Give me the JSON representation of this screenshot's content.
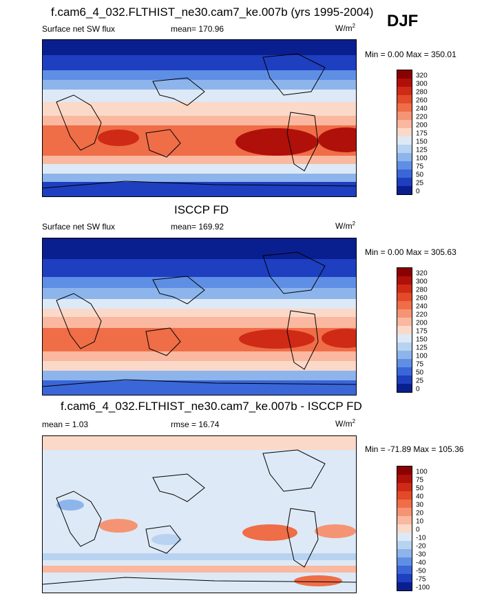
{
  "season": "DJF",
  "chart_data": [
    {
      "type": "heatmap",
      "title": "f.cam6_4_032.FLTHIST_ne30.cam7_ke.007b (yrs 1995-2004)",
      "left_label": "Surface net SW flux",
      "center_label": "mean= 170.96",
      "units": "W/m",
      "units_sup": "2",
      "minmax": "Min =   0.00 Max = 350.01",
      "levels": [
        "320",
        "300",
        "280",
        "260",
        "240",
        "220",
        "200",
        "175",
        "150",
        "125",
        "100",
        "75",
        "50",
        "25",
        "0"
      ],
      "colors": [
        "#8b0000",
        "#b0100a",
        "#cf2a16",
        "#e24a2a",
        "#ef6d47",
        "#f59474",
        "#f9b89f",
        "#fbd9c9",
        "#dde9f6",
        "#b8d3f1",
        "#8db5ec",
        "#5f8fe4",
        "#3a66d8",
        "#1e3fbf",
        "#0a1f8f"
      ],
      "mean": 170.96,
      "min": 0.0,
      "max": 350.01
    },
    {
      "type": "heatmap",
      "title": "ISCCP FD",
      "left_label": "Surface net SW flux",
      "center_label": "mean= 169.92",
      "units": "W/m",
      "units_sup": "2",
      "minmax": "Min =   0.00 Max = 305.63",
      "levels": [
        "320",
        "300",
        "280",
        "260",
        "240",
        "220",
        "200",
        "175",
        "150",
        "125",
        "100",
        "75",
        "50",
        "25",
        "0"
      ],
      "colors": [
        "#8b0000",
        "#b0100a",
        "#cf2a16",
        "#e24a2a",
        "#ef6d47",
        "#f59474",
        "#f9b89f",
        "#fbd9c9",
        "#dde9f6",
        "#b8d3f1",
        "#8db5ec",
        "#5f8fe4",
        "#3a66d8",
        "#1e3fbf",
        "#0a1f8f"
      ],
      "mean": 169.92,
      "min": 0.0,
      "max": 305.63
    },
    {
      "type": "heatmap",
      "title": "f.cam6_4_032.FLTHIST_ne30.cam7_ke.007b - ISCCP FD",
      "left_label": "mean =   1.03",
      "center_label": "rmse =  16.74",
      "units": "W/m",
      "units_sup": "2",
      "minmax": "Min = -71.89 Max = 105.36",
      "levels": [
        "100",
        "75",
        "50",
        "40",
        "30",
        "20",
        "10",
        "0",
        "-10",
        "-20",
        "-30",
        "-40",
        "-50",
        "-75",
        "-100"
      ],
      "colors": [
        "#8b0000",
        "#b0100a",
        "#cf2a16",
        "#e24a2a",
        "#ef6d47",
        "#f59474",
        "#f9b89f",
        "#fbd9c9",
        "#dde9f6",
        "#b8d3f1",
        "#8db5ec",
        "#5f8fe4",
        "#3a66d8",
        "#1e3fbf",
        "#0a1f8f"
      ],
      "mean": 1.03,
      "rmse": 16.74,
      "min": -71.89,
      "max": 105.36
    }
  ]
}
